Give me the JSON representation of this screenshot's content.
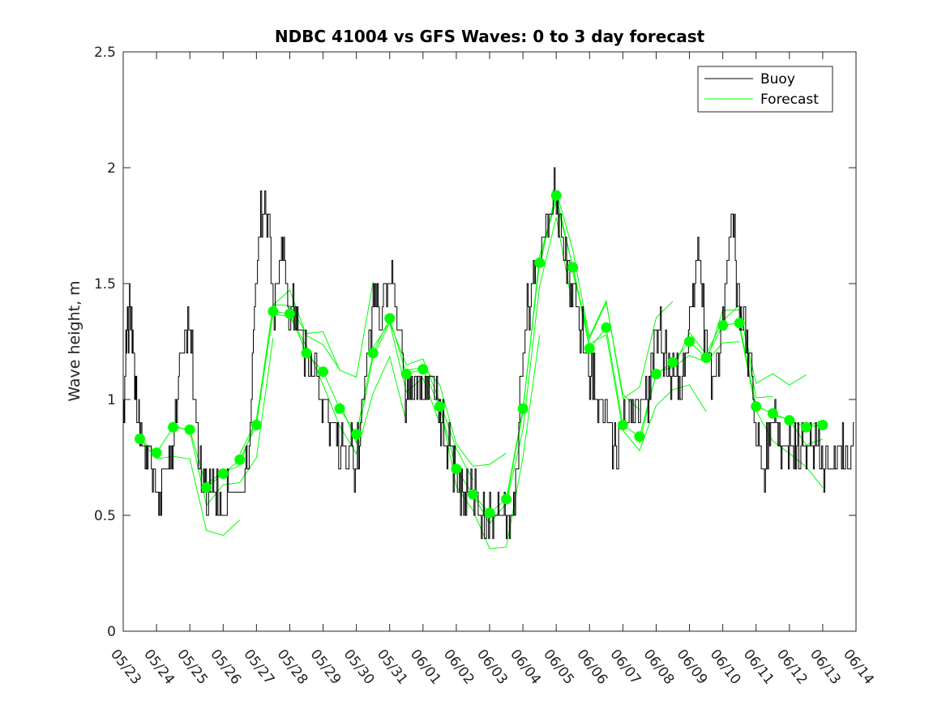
{
  "chart_data": {
    "type": "line",
    "title": "NDBC 41004 vs GFS Waves: 0 to 3 day forecast",
    "xlabel": "",
    "ylabel": "Wave height, m",
    "ylim": [
      0,
      2.5
    ],
    "yticks": [
      "0",
      "0.5",
      "1",
      "1.5",
      "2",
      "2.5"
    ],
    "xlim": [
      "2016-05-23",
      "2016-06-14"
    ],
    "xticks": [
      "05/23",
      "05/24",
      "05/25",
      "05/26",
      "05/27",
      "05/28",
      "05/29",
      "05/30",
      "05/31",
      "06/01",
      "06/02",
      "06/03",
      "06/04",
      "06/05",
      "06/06",
      "06/07",
      "06/08",
      "06/09",
      "06/10",
      "06/11",
      "06/12",
      "06/13",
      "06/14"
    ],
    "legend": {
      "placement": "top-right",
      "entries": [
        "Buoy",
        "Forecast"
      ]
    },
    "colors": {
      "buoy": "#000000",
      "forecast": "#00ff00"
    },
    "series": [
      {
        "name": "Buoy",
        "x": [
          "2016-05-23",
          "2016-05-23 03:00",
          "2016-05-23 06:00",
          "2016-05-23 09:00",
          "2016-05-23 12:00",
          "2016-05-23 18:00",
          "2016-05-24 00:00",
          "2016-05-24 06:00",
          "2016-05-24 12:00",
          "2016-05-24 18:00",
          "2016-05-25 00:00",
          "2016-05-25 06:00",
          "2016-05-25 12:00",
          "2016-05-25 18:00",
          "2016-05-26 00:00",
          "2016-05-26 06:00",
          "2016-05-26 12:00",
          "2016-05-26 18:00",
          "2016-05-27 00:00",
          "2016-05-27 06:00",
          "2016-05-27 12:00",
          "2016-05-27 18:00",
          "2016-05-28 00:00",
          "2016-05-28 06:00",
          "2016-05-28 12:00",
          "2016-05-28 18:00",
          "2016-05-29 00:00",
          "2016-05-29 06:00",
          "2016-05-29 12:00",
          "2016-05-29 18:00",
          "2016-05-30 00:00",
          "2016-05-30 06:00",
          "2016-05-30 12:00",
          "2016-05-30 18:00",
          "2016-05-31 00:00",
          "2016-05-31 06:00",
          "2016-05-31 12:00",
          "2016-05-31 18:00",
          "2016-06-01 00:00",
          "2016-06-01 06:00",
          "2016-06-01 12:00",
          "2016-06-01 18:00",
          "2016-06-02 00:00",
          "2016-06-02 06:00",
          "2016-06-02 12:00",
          "2016-06-02 18:00",
          "2016-06-03 00:00",
          "2016-06-03 06:00",
          "2016-06-03 12:00",
          "2016-06-03 18:00",
          "2016-06-04 00:00",
          "2016-06-04 06:00",
          "2016-06-04 12:00",
          "2016-06-04 18:00",
          "2016-06-05 00:00",
          "2016-06-05 06:00",
          "2016-06-05 12:00",
          "2016-06-05 18:00",
          "2016-06-06 00:00",
          "2016-06-06 06:00",
          "2016-06-06 12:00",
          "2016-06-06 18:00",
          "2016-06-07 00:00",
          "2016-06-07 06:00",
          "2016-06-07 12:00",
          "2016-06-07 18:00",
          "2016-06-08 00:00",
          "2016-06-08 06:00",
          "2016-06-08 12:00",
          "2016-06-08 18:00",
          "2016-06-09 00:00",
          "2016-06-09 06:00",
          "2016-06-09 12:00",
          "2016-06-09 18:00",
          "2016-06-10 00:00",
          "2016-06-10 06:00",
          "2016-06-10 12:00",
          "2016-06-10 18:00",
          "2016-06-11 00:00",
          "2016-06-11 06:00",
          "2016-06-11 12:00",
          "2016-06-11 18:00",
          "2016-06-12 00:00",
          "2016-06-12 06:00",
          "2016-06-12 12:00",
          "2016-06-12 18:00",
          "2016-06-13 00:00",
          "2016-06-13 06:00",
          "2016-06-13 12:00",
          "2016-06-13 18:00"
        ],
        "values": [
          0.9,
          1.3,
          1.4,
          1.0,
          0.8,
          0.8,
          0.6,
          0.7,
          0.8,
          1.2,
          1.3,
          0.8,
          0.6,
          0.6,
          0.5,
          0.6,
          0.6,
          0.7,
          1.6,
          1.9,
          1.4,
          1.7,
          1.4,
          1.3,
          1.2,
          1.1,
          1.0,
          0.9,
          0.8,
          0.8,
          0.7,
          1.1,
          1.4,
          1.4,
          1.6,
          1.3,
          1.0,
          1.1,
          1.0,
          1.1,
          0.9,
          0.8,
          0.7,
          0.6,
          0.6,
          0.5,
          0.5,
          0.5,
          0.5,
          0.6,
          1.2,
          1.5,
          1.6,
          1.8,
          1.9,
          1.6,
          1.5,
          1.3,
          1.1,
          1.0,
          0.9,
          0.8,
          0.9,
          0.9,
          1.0,
          1.0,
          1.3,
          1.2,
          1.1,
          1.0,
          1.4,
          1.6,
          1.2,
          1.1,
          1.3,
          1.8,
          1.4,
          1.2,
          0.8,
          0.7,
          0.9,
          0.8,
          0.8,
          0.8,
          0.8,
          0.8,
          0.7,
          0.7,
          0.8,
          0.8
        ]
      },
      {
        "name": "Forecast",
        "x": [
          "2016-05-23 12:00",
          "2016-05-24 00:00",
          "2016-05-24 12:00",
          "2016-05-25 00:00",
          "2016-05-25 12:00",
          "2016-05-26 00:00",
          "2016-05-26 12:00",
          "2016-05-27 00:00",
          "2016-05-27 12:00",
          "2016-05-28 00:00",
          "2016-05-28 12:00",
          "2016-05-29 00:00",
          "2016-05-29 12:00",
          "2016-05-30 00:00",
          "2016-05-30 12:00",
          "2016-05-31 00:00",
          "2016-05-31 12:00",
          "2016-06-01 00:00",
          "2016-06-01 12:00",
          "2016-06-02 00:00",
          "2016-06-02 12:00",
          "2016-06-03 00:00",
          "2016-06-03 12:00",
          "2016-06-04 00:00",
          "2016-06-04 12:00",
          "2016-06-05 00:00",
          "2016-06-05 12:00",
          "2016-06-06 00:00",
          "2016-06-06 12:00",
          "2016-06-07 00:00",
          "2016-06-07 12:00",
          "2016-06-08 00:00",
          "2016-06-08 12:00",
          "2016-06-09 00:00",
          "2016-06-09 12:00",
          "2016-06-10 00:00",
          "2016-06-10 12:00",
          "2016-06-11 00:00",
          "2016-06-11 12:00",
          "2016-06-12 00:00",
          "2016-06-12 12:00",
          "2016-06-13 00:00"
        ],
        "values": [
          0.83,
          0.77,
          0.88,
          0.87,
          0.62,
          0.68,
          0.74,
          0.89,
          1.38,
          1.37,
          1.2,
          1.12,
          0.96,
          0.85,
          1.2,
          1.35,
          1.11,
          1.13,
          0.97,
          0.7,
          0.59,
          0.51,
          0.57,
          0.96,
          1.59,
          1.88,
          1.57,
          1.22,
          1.31,
          0.89,
          0.84,
          1.11,
          1.16,
          1.25,
          1.18,
          1.32,
          1.33,
          0.97,
          0.94,
          0.91,
          0.88,
          0.89
        ]
      }
    ]
  }
}
